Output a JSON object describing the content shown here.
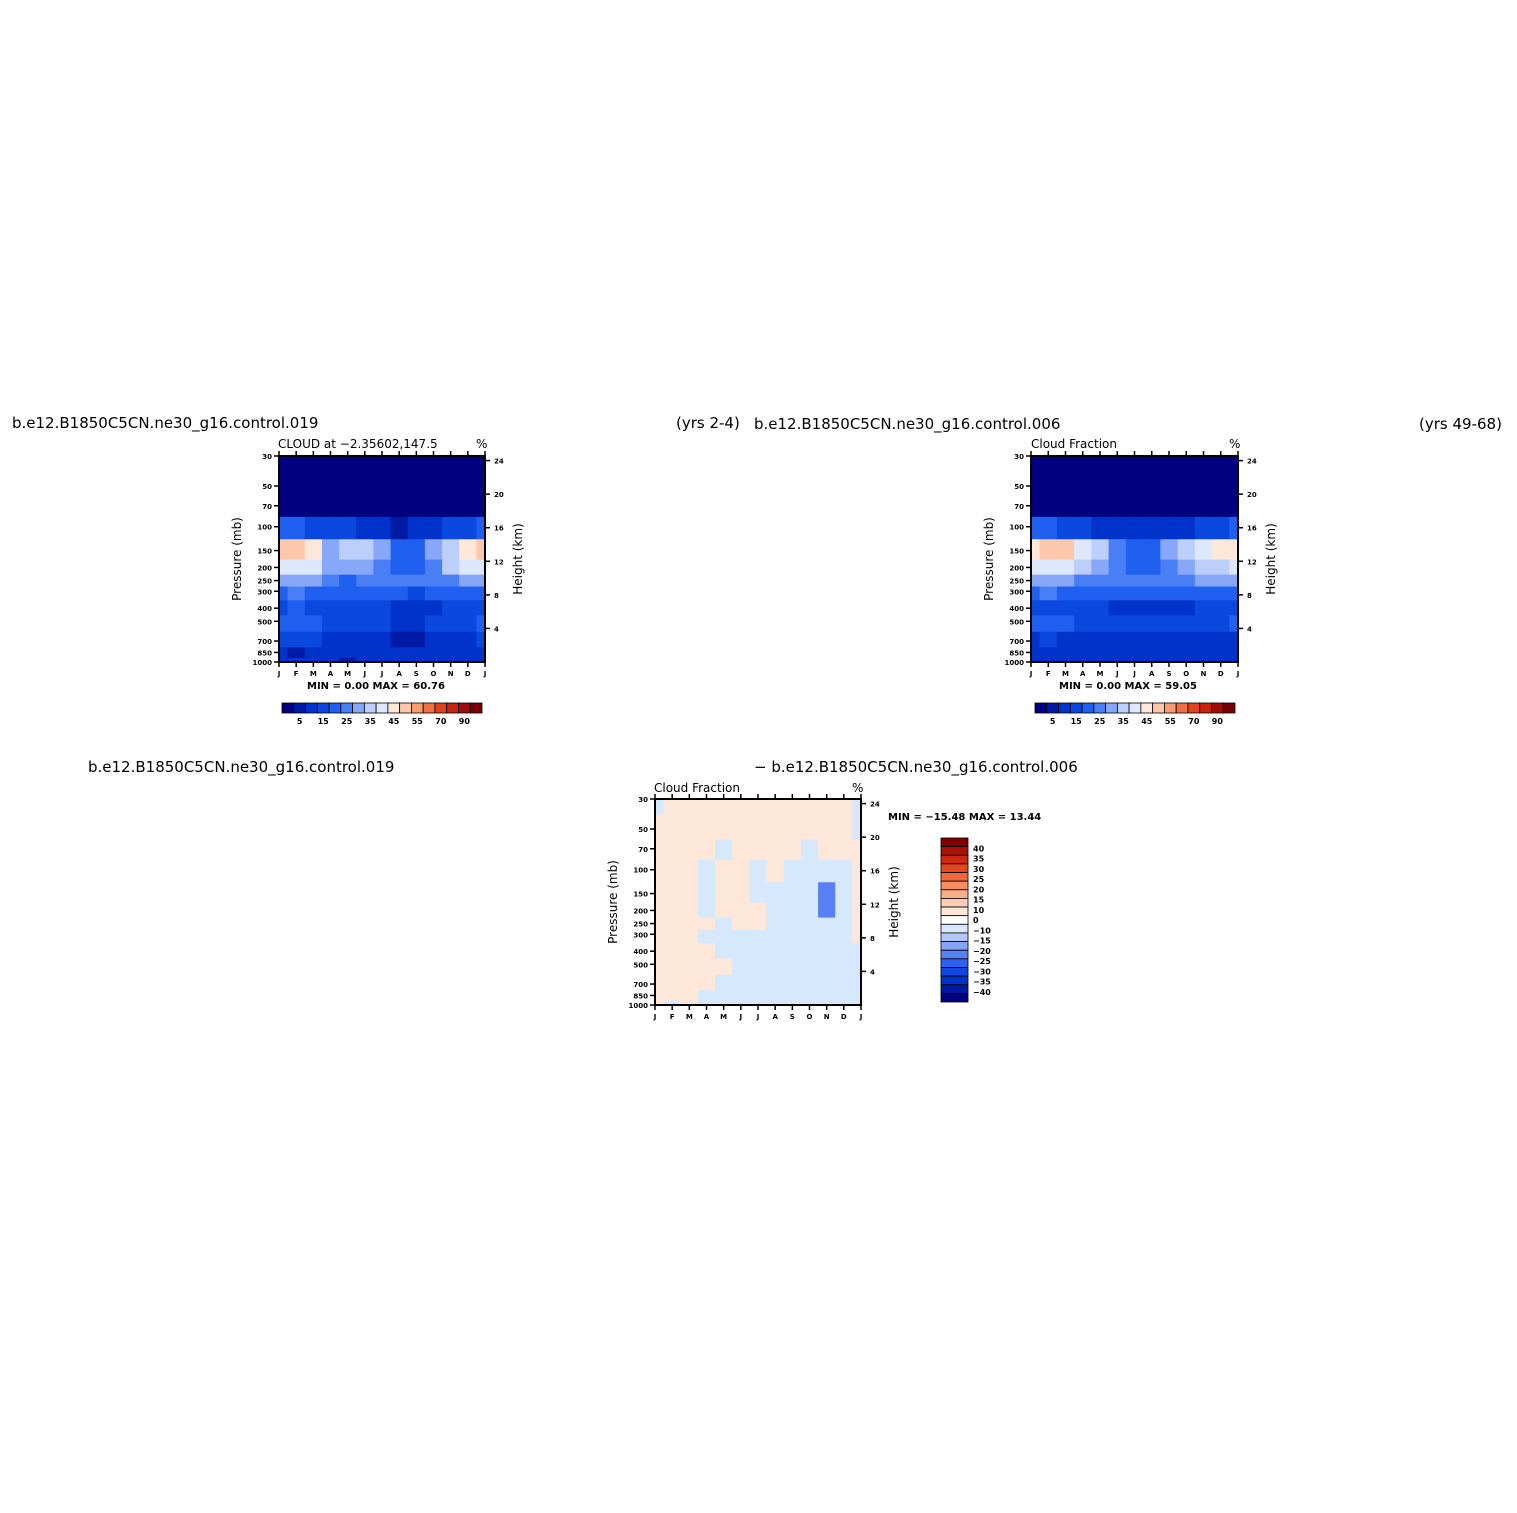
{
  "header": {
    "case1_label": "b.e12.B1850C5CN.ne30_g16.control.019",
    "case1_years": "(yrs  2-4)",
    "case2_label": "b.e12.B1850C5CN.ne30_g16.control.006",
    "case2_years": "(yrs  49-68)",
    "diff_left": "b.e12.B1850C5CN.ne30_g16.control.019",
    "diff_right": "−  b.e12.B1850C5CN.ne30_g16.control.006"
  },
  "colors": {
    "cloud_scale": [
      "#020080",
      "#001AA6",
      "#0033CC",
      "#0A48E0",
      "#2060F0",
      "#4A7EF5",
      "#87A8F8",
      "#BCCEFA",
      "#DDE8FC",
      "#FDE7D8",
      "#FCC7AA",
      "#F89B70",
      "#F07045",
      "#E0441E",
      "#C42410",
      "#9E0E06",
      "#7A0000"
    ],
    "diff_scale": [
      "#02007F",
      "#0019A5",
      "#0033CC",
      "#1246E0",
      "#3060EE",
      "#5880F4",
      "#87A5F8",
      "#B3C8FB",
      "#D8E7FD",
      "#FFFFFF",
      "#FDE7D8",
      "#FCCDB2",
      "#F9AE8A",
      "#F68C62",
      "#F2683C",
      "#E6461E",
      "#CC2A0E",
      "#A81404",
      "#800000"
    ]
  },
  "chart_data": [
    {
      "type": "heatmap",
      "name": "panel-control-019",
      "title": "CLOUD at −2.35602,147.5",
      "units": "%",
      "xlabel": "",
      "ylabel": "Pressure (mb)",
      "y2label": "Height (km)",
      "x_ticks": [
        "J",
        "F",
        "M",
        "A",
        "M",
        "J",
        "J",
        "A",
        "S",
        "O",
        "N",
        "D",
        "J"
      ],
      "y_ticks": [
        30,
        50,
        70,
        100,
        150,
        200,
        250,
        300,
        400,
        500,
        700,
        850,
        1000
      ],
      "y2_ticks": [
        4,
        8,
        12,
        16,
        20,
        24
      ],
      "stats": "MIN =    0.00  MAX =   60.76",
      "min": 0.0,
      "max": 60.76,
      "colorbar_labels": [
        "5",
        "15",
        "25",
        "35",
        "45",
        "55",
        "70",
        "90"
      ],
      "pressure_levels": [
        1000,
        850,
        700,
        500,
        400,
        300,
        250,
        200,
        150,
        100,
        70,
        50,
        30
      ],
      "values": [
        [
          12,
          12,
          10,
          10,
          9,
          10,
          12,
          14,
          14,
          12,
          12,
          12,
          12
        ],
        [
          10,
          9,
          10,
          11,
          12,
          13,
          12,
          12,
          13,
          13,
          12,
          11,
          10
        ],
        [
          15,
          16,
          15,
          14,
          12,
          10,
          13,
          9,
          8,
          10,
          11,
          14,
          15
        ],
        [
          22,
          24,
          20,
          16,
          18,
          17,
          16,
          14,
          14,
          16,
          17,
          19,
          22
        ],
        [
          19,
          21,
          18,
          16,
          17,
          16,
          15,
          12,
          11,
          14,
          16,
          18,
          19
        ],
        [
          24,
          26,
          22,
          20,
          22,
          20,
          21,
          20,
          18,
          22,
          21,
          23,
          24
        ],
        [
          33,
          34,
          30,
          25,
          24,
          25,
          27,
          26,
          25,
          27,
          29,
          31,
          33
        ],
        [
          42,
          44,
          40,
          30,
          33,
          34,
          28,
          22,
          20,
          27,
          36,
          41,
          42
        ],
        [
          50,
          52,
          48,
          34,
          38,
          37,
          30,
          22,
          24,
          32,
          38,
          47,
          50
        ],
        [
          20,
          20,
          18,
          15,
          15,
          12,
          10,
          8,
          10,
          13,
          15,
          18,
          20
        ],
        [
          4,
          4,
          4,
          4,
          3,
          3,
          3,
          3,
          3,
          3,
          3,
          4,
          4
        ],
        [
          1,
          1,
          1,
          1,
          1,
          1,
          1,
          1,
          1,
          1,
          1,
          1,
          1
        ],
        [
          0,
          0,
          0,
          0,
          0,
          0,
          0,
          0,
          0,
          0,
          0,
          0,
          0
        ]
      ]
    },
    {
      "type": "heatmap",
      "name": "panel-control-006",
      "title": "Cloud Fraction",
      "units": "%",
      "xlabel": "",
      "ylabel": "Pressure (mb)",
      "y2label": "Height (km)",
      "x_ticks": [
        "J",
        "F",
        "M",
        "A",
        "M",
        "J",
        "J",
        "A",
        "S",
        "O",
        "N",
        "D",
        "J"
      ],
      "y_ticks": [
        30,
        50,
        70,
        100,
        150,
        200,
        250,
        300,
        400,
        500,
        700,
        850,
        1000
      ],
      "y2_ticks": [
        4,
        8,
        12,
        16,
        20,
        24
      ],
      "stats": "MIN =    0.00  MAX =   59.05",
      "min": 0.0,
      "max": 59.05,
      "colorbar_labels": [
        "5",
        "15",
        "25",
        "35",
        "45",
        "55",
        "70",
        "90"
      ],
      "pressure_levels": [
        1000,
        850,
        700,
        500,
        400,
        300,
        250,
        200,
        150,
        100,
        70,
        50,
        30
      ],
      "values": [
        [
          12,
          12,
          11,
          11,
          10,
          11,
          12,
          13,
          13,
          12,
          12,
          12,
          12
        ],
        [
          10,
          10,
          11,
          12,
          12,
          12,
          12,
          12,
          12,
          12,
          11,
          11,
          10
        ],
        [
          14,
          15,
          14,
          14,
          13,
          12,
          12,
          11,
          11,
          12,
          13,
          14,
          14
        ],
        [
          20,
          21,
          20,
          18,
          17,
          17,
          16,
          15,
          15,
          16,
          17,
          19,
          20
        ],
        [
          18,
          19,
          18,
          16,
          15,
          14,
          14,
          13,
          13,
          14,
          16,
          17,
          18
        ],
        [
          24,
          25,
          24,
          22,
          21,
          20,
          20,
          20,
          20,
          21,
          22,
          23,
          24
        ],
        [
          32,
          33,
          32,
          29,
          27,
          26,
          25,
          25,
          26,
          28,
          30,
          31,
          32
        ],
        [
          40,
          43,
          42,
          38,
          34,
          29,
          24,
          24,
          29,
          34,
          37,
          39,
          40
        ],
        [
          46,
          52,
          50,
          44,
          36,
          28,
          22,
          22,
          30,
          38,
          44,
          46,
          46
        ],
        [
          20,
          20,
          18,
          16,
          14,
          12,
          10,
          10,
          12,
          14,
          16,
          18,
          20
        ],
        [
          4,
          4,
          4,
          4,
          3,
          3,
          3,
          3,
          3,
          3,
          4,
          4,
          4
        ],
        [
          1,
          1,
          1,
          1,
          1,
          1,
          1,
          1,
          1,
          1,
          1,
          1,
          1
        ],
        [
          0,
          0,
          0,
          0,
          0,
          0,
          0,
          0,
          0,
          0,
          0,
          0,
          0
        ]
      ]
    },
    {
      "type": "heatmap",
      "name": "panel-difference",
      "title": "Cloud Fraction",
      "units": "%",
      "xlabel": "",
      "ylabel": "Pressure (mb)",
      "y2label": "Height (km)",
      "x_ticks": [
        "J",
        "F",
        "M",
        "A",
        "M",
        "J",
        "J",
        "A",
        "S",
        "O",
        "N",
        "D",
        "J"
      ],
      "y_ticks": [
        30,
        50,
        70,
        100,
        150,
        200,
        250,
        300,
        400,
        500,
        700,
        850,
        1000
      ],
      "y2_ticks": [
        4,
        8,
        12,
        16,
        20,
        24
      ],
      "stats": "MIN = −15.48  MAX =   13.44",
      "min": -15.48,
      "max": 13.44,
      "colorbar_labels": [
        "40",
        "35",
        "30",
        "25",
        "20",
        "15",
        "10",
        "0",
        "−10",
        "−15",
        "−20",
        "−25",
        "−30",
        "−35",
        "−40"
      ],
      "pressure_levels": [
        1000,
        850,
        700,
        500,
        400,
        300,
        250,
        200,
        150,
        100,
        70,
        50,
        30
      ],
      "values": [
        [
          2,
          -2,
          2,
          -3,
          -3,
          -3,
          -3,
          -3,
          -3,
          -3,
          -3,
          -3,
          -3
        ],
        [
          2,
          2,
          3,
          -3,
          -3,
          -3,
          -3,
          -3,
          -3,
          -3,
          -3,
          -3,
          -3
        ],
        [
          2,
          9,
          2,
          2,
          -3,
          -3,
          -3,
          -3,
          -3,
          -3,
          -3,
          -3,
          -3
        ],
        [
          2,
          12,
          3,
          2,
          2,
          -3,
          -3,
          -3,
          -3,
          -3,
          -3,
          -3,
          -3
        ],
        [
          2,
          6,
          3,
          2,
          -3,
          -3,
          -3,
          -3,
          -3,
          -3,
          -3,
          -3,
          -3
        ],
        [
          2,
          4,
          3,
          -3,
          -3,
          -3,
          -2,
          -3,
          -3,
          -3,
          -3,
          -3,
          3
        ],
        [
          2,
          8,
          3,
          2,
          -3,
          2,
          2,
          -3,
          -3,
          -3,
          -3,
          -3,
          3
        ],
        [
          2,
          3,
          3,
          -3,
          2,
          2,
          2,
          -3,
          -3,
          -3,
          -11,
          -3,
          3
        ],
        [
          2,
          3,
          2,
          -3,
          2,
          2,
          -3,
          -3,
          -3,
          -3,
          -12,
          -3,
          3
        ],
        [
          2,
          2,
          2,
          -3,
          2,
          2,
          -3,
          2,
          -3,
          -3,
          -3,
          -3,
          3
        ],
        [
          2,
          2,
          2,
          2,
          -3,
          3,
          2,
          2,
          2,
          -3,
          2,
          2,
          3
        ],
        [
          2,
          2,
          3,
          2,
          2,
          2,
          3,
          3,
          2,
          3,
          2,
          2,
          -3
        ],
        [
          -3,
          2,
          3,
          2,
          2,
          2,
          2,
          2,
          2,
          2,
          2,
          2,
          -3
        ]
      ]
    }
  ]
}
